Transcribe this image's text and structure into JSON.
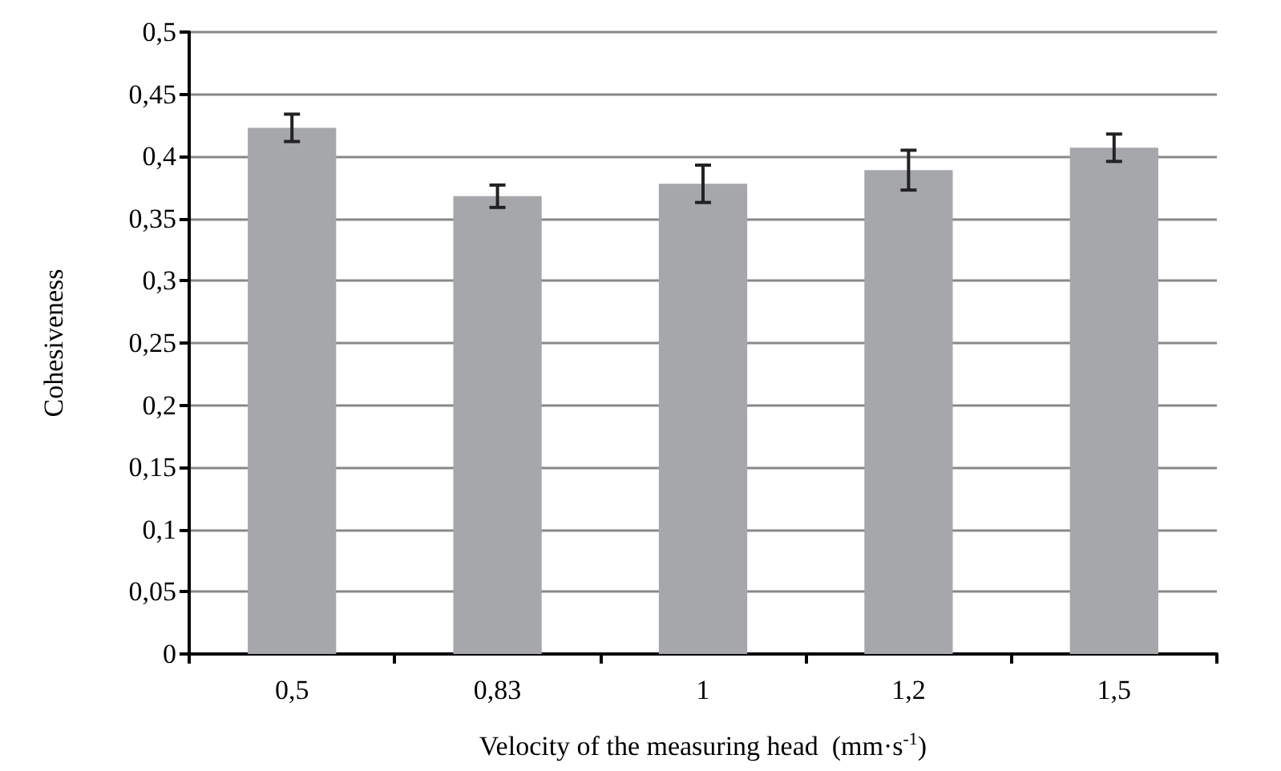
{
  "chart_data": {
    "type": "bar",
    "xlabel": "Velocity of the measuring head  (mm·s$^{-1}$)",
    "ylabel": "Cohesiveness",
    "categories": [
      "0,5",
      "0,83",
      "1",
      "1,2",
      "1,5"
    ],
    "values": [
      0.423,
      0.368,
      0.378,
      0.389,
      0.407
    ],
    "errors": [
      0.011,
      0.009,
      0.015,
      0.016,
      0.011
    ],
    "color": "#a6a7aa",
    "ylim": [
      0,
      0.5
    ],
    "yticks": [
      {
        "value": 0,
        "label": "0"
      },
      {
        "value": 0.05,
        "label": "0,05"
      },
      {
        "value": 0.1,
        "label": "0,1"
      },
      {
        "value": 0.15,
        "label": "0,15"
      },
      {
        "value": 0.2,
        "label": "0,2"
      },
      {
        "value": 0.25,
        "label": "0,25"
      },
      {
        "value": 0.3,
        "label": "0,3"
      },
      {
        "value": 0.35,
        "label": "0,35"
      },
      {
        "value": 0.4,
        "label": "0,4"
      },
      {
        "value": 0.45,
        "label": "0,45"
      },
      {
        "value": 0.5,
        "label": "0,5"
      }
    ],
    "grid": "y"
  }
}
